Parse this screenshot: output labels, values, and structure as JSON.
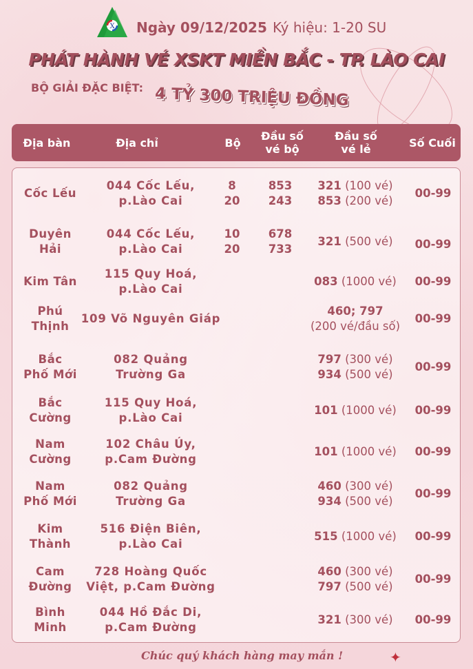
{
  "header": {
    "logo_icon": "lottery-company-logo-triangle",
    "date": "Ngày 09/12/2025",
    "symbol": "Ký hiệu: 1-20 SU",
    "title": "PHÁT HÀNH VÉ XSKT MIỀN BẮC - TP. LÀO CAI",
    "prize_label": "BỘ GIẢI ĐẶC BIỆT:",
    "prize_value": "4 TỶ 300 TRIỆU ĐỒNG"
  },
  "table": {
    "columns": [
      "Địa bàn",
      "Địa chỉ",
      "Bộ",
      "Đầu số\nvé bộ",
      "Đầu số\nvé lẻ",
      "Số Cuối"
    ],
    "rows": [
      {
        "area": "Cốc Lếu",
        "address": "044 Cốc Lếu,\np.Lào Cai",
        "bo": [
          "8",
          "20"
        ],
        "dau_so_bo": [
          "853",
          "243"
        ],
        "le": [
          [
            "321",
            " (100 vé)"
          ],
          [
            "853",
            " (200 vé)"
          ]
        ],
        "so_cuoi": "00-99"
      },
      {
        "area": "Duyên\nHải",
        "address": "044 Cốc Lếu,\np.Lào Cai",
        "bo": [
          "10",
          "20"
        ],
        "dau_so_bo": [
          "678",
          "733"
        ],
        "le": [
          [
            "321",
            " (500 vé)"
          ]
        ],
        "so_cuoi": "00-99"
      },
      {
        "area": "Kim Tân",
        "address": "115 Quy Hoá,\np.Lào Cai",
        "bo": [],
        "dau_so_bo": [],
        "le": [
          [
            "083",
            " (1000 vé)"
          ]
        ],
        "so_cuoi": "00-99"
      },
      {
        "area": "Phú\nThịnh",
        "address": "109 Võ Nguyên Giáp",
        "bo": [],
        "dau_so_bo": [],
        "le": [
          [
            "460; 797",
            ""
          ],
          [
            "",
            "(200 vé/đầu số)"
          ]
        ],
        "so_cuoi": "00-99"
      },
      {
        "area": "Bắc\nPhố Mới",
        "address": "082 Quảng\nTrường Ga",
        "bo": [],
        "dau_so_bo": [],
        "le": [
          [
            "797",
            " (300 vé)"
          ],
          [
            "934",
            " (500 vé)"
          ]
        ],
        "so_cuoi": "00-99"
      },
      {
        "area": "Bắc\nCường",
        "address": "115 Quy Hoá,\np.Lào Cai",
        "bo": [],
        "dau_so_bo": [],
        "le": [
          [
            "101",
            " (1000 vé)"
          ]
        ],
        "so_cuoi": "00-99"
      },
      {
        "area": "Nam\nCường",
        "address": "102 Châu Úy,\np.Cam Đường",
        "bo": [],
        "dau_so_bo": [],
        "le": [
          [
            "101",
            " (1000 vé)"
          ]
        ],
        "so_cuoi": "00-99"
      },
      {
        "area": "Nam\nPhố Mới",
        "address": "082 Quảng\nTrường Ga",
        "bo": [],
        "dau_so_bo": [],
        "le": [
          [
            "460",
            " (300 vé)"
          ],
          [
            "934",
            " (500 vé)"
          ]
        ],
        "so_cuoi": "00-99"
      },
      {
        "area": "Kim\nThành",
        "address": "516 Điện Biên,\np.Lào Cai",
        "bo": [],
        "dau_so_bo": [],
        "le": [
          [
            "515",
            " (1000 vé)"
          ]
        ],
        "so_cuoi": "00-99"
      },
      {
        "area": "Cam\nĐường",
        "address": "728 Hoàng Quốc\nViệt, p.Cam Đường",
        "bo": [],
        "dau_so_bo": [],
        "le": [
          [
            "460",
            " (300 vé)"
          ],
          [
            "797",
            " (500 vé)"
          ]
        ],
        "so_cuoi": "00-99"
      },
      {
        "area": "Bình\nMinh",
        "address": "044 Hồ Đắc Di,\np.Cam Đường",
        "bo": [],
        "dau_so_bo": [],
        "le": [
          [
            "321",
            " (300 vé)"
          ]
        ],
        "so_cuoi": "00-99"
      }
    ]
  },
  "footer": {
    "message": "Chúc quý khách hàng may mắn !",
    "star_icon": "sparkle-star"
  },
  "colors": {
    "primary": "#a4505e",
    "header_bar": "#ac5766",
    "background": "#f7dfe2"
  }
}
